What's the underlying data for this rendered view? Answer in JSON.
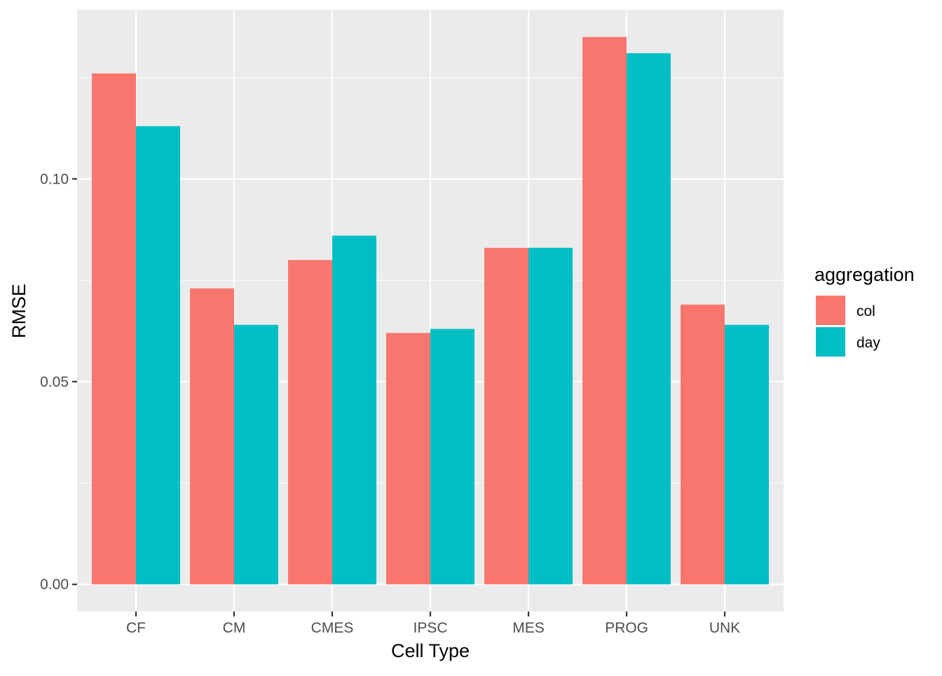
{
  "chart_data": {
    "type": "bar",
    "xlabel": "Cell Type",
    "ylabel": "RMSE",
    "categories": [
      "CF",
      "CM",
      "CMES",
      "IPSC",
      "MES",
      "PROG",
      "UNK"
    ],
    "series": [
      {
        "name": "col",
        "color": "#F8766D",
        "values": [
          0.126,
          0.073,
          0.08,
          0.062,
          0.083,
          0.135,
          0.069
        ]
      },
      {
        "name": "day",
        "color": "#00BFC4",
        "values": [
          0.113,
          0.064,
          0.086,
          0.063,
          0.083,
          0.131,
          0.064
        ]
      }
    ],
    "ylim": [
      -0.0067,
      0.1417
    ],
    "yticks": [
      {
        "value": 0.0,
        "label": "0.00"
      },
      {
        "value": 0.05,
        "label": "0.05"
      },
      {
        "value": 0.1,
        "label": "0.10"
      }
    ],
    "y_minor_gridlines": [
      0.025,
      0.075,
      0.125
    ],
    "grid": true,
    "panel_background": "#EBEBEB",
    "legend": {
      "title": "aggregation",
      "placement": "right"
    }
  }
}
